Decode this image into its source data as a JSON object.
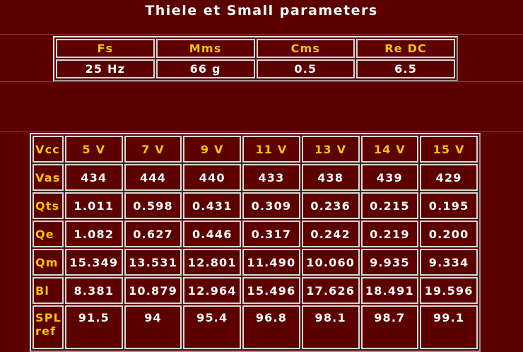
{
  "title": "Thiele et Small parameters",
  "table1": {
    "header": [
      "Fs",
      "Mms",
      "Cms",
      "Re DC"
    ],
    "rows": [
      [
        "25 Hz",
        "66 g",
        "0.5",
        "6.5"
      ]
    ]
  },
  "table2": {
    "header": [
      "Vcc",
      "5 V",
      "7 V",
      "9 V",
      "11 V",
      "13 V",
      "14 V",
      "15 V"
    ],
    "rows": [
      [
        "Vas",
        "434",
        "444",
        "440",
        "433",
        "438",
        "439",
        "429"
      ],
      [
        "Qts",
        "1.011",
        "0.598",
        "0.431",
        "0.309",
        "0.236",
        "0.215",
        "0.195"
      ],
      [
        "Qe",
        "1.082",
        "0.627",
        "0.446",
        "0.317",
        "0.242",
        "0.219",
        "0.200"
      ],
      [
        "Qm",
        "15.349",
        "13.531",
        "12.801",
        "11.490",
        "10.060",
        "9.935",
        "9.334"
      ],
      [
        "Bl",
        "8.381",
        "10.879",
        "12.964",
        "15.496",
        "17.626",
        "18.491",
        "19.596"
      ],
      [
        "SPL ref",
        "91.5",
        "94",
        "95.4",
        "96.8",
        "98.1",
        "98.7",
        "99.1"
      ]
    ]
  }
}
